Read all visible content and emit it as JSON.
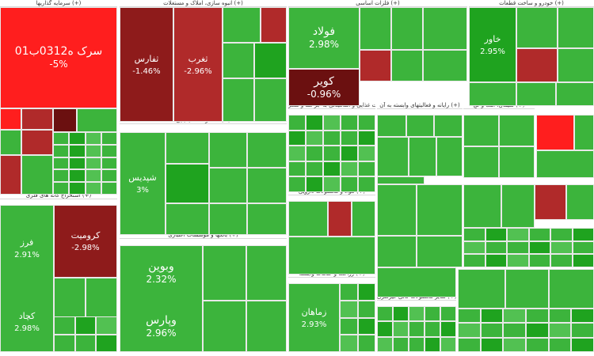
{
  "chart_data": {
    "type": "treemap",
    "colors": {
      "up_strong": "#1fa31f",
      "up": "#3cb43c",
      "up_light": "#52c152",
      "down_light": "#b02a2a",
      "down": "#8e1b1b",
      "down_strong": "#6b1010",
      "limit_down": "#ff1e1e"
    },
    "sectors": [
      {
        "label": "سرمایه گذاریها (+)"
      },
      {
        "label": "انبوه سازی، املاک و مستغلات (+)"
      },
      {
        "label": "فلزات اساسی (+)"
      },
      {
        "label": "خودرو و ساخت قطعات (+)"
      },
      {
        "label": "محصولات شیمیایی (+)"
      },
      {
        "label": "استخراج کانه های فلزی (+)"
      },
      {
        "label": "بانکها و موسسات اعتباری (+)"
      },
      {
        "label": "محصولات غذایی و آشامیدنی به جز قند و شکر (+)"
      },
      {
        "label": "رایانه و فعالیتهای وابسته به آن (+)"
      },
      {
        "label": "سیمان، آهک و گچ (+)"
      },
      {
        "label": "مواد و محصولات دارویی (+)"
      },
      {
        "label": "زراعت و خدمات وابسته (+)"
      },
      {
        "label": "سایر محصولات کانی غیرفلزی (+)"
      }
    ],
    "labeled_tiles": [
      {
        "name": "سرک ه0312ب01",
        "change": "-5%"
      },
      {
        "name": "ثفارس",
        "change": "-1.46%"
      },
      {
        "name": "ثغرب",
        "change": "-2.96%"
      },
      {
        "name": "فولاد",
        "change": "2.98%"
      },
      {
        "name": "کویر",
        "change": "-0.96%"
      },
      {
        "name": "خاور",
        "change": "2.95%"
      },
      {
        "name": "شپدیس",
        "change": "3%"
      },
      {
        "name": "فرز",
        "change": "2.91%"
      },
      {
        "name": "کرومیت",
        "change": "-2.98%"
      },
      {
        "name": "وبوین",
        "change": "2.32%"
      },
      {
        "name": "وپارس",
        "change": "2.96%"
      },
      {
        "name": "زماهان",
        "change": "2.93%"
      },
      {
        "name": "کچاد",
        "change": "2.98%"
      }
    ]
  }
}
